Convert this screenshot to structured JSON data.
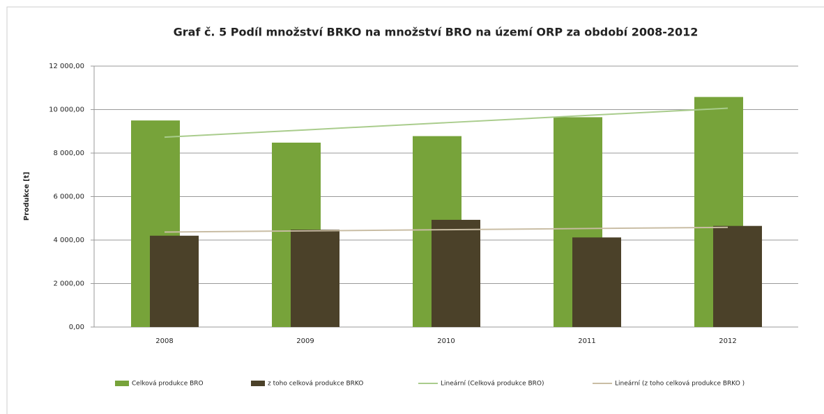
{
  "chart_data": {
    "type": "bar",
    "title": "Graf č. 5 Podíl množství BRKO na množství BRO na území ORP za období 2008-2012",
    "y_label": "Produkce [t]",
    "categories": [
      "2008",
      "2009",
      "2010",
      "2011",
      "2012"
    ],
    "series": [
      {
        "name": "Celková produkce BRO",
        "type": "bar",
        "color": "#77a33a",
        "values": [
          9500,
          8480,
          8780,
          9650,
          10580
        ]
      },
      {
        "name": "z toho celková produkce BRKO",
        "type": "bar",
        "color": "#4b4129",
        "values": [
          4200,
          4480,
          4930,
          4120,
          4650
        ]
      },
      {
        "name": "Lineární (Celková produkce BRO)",
        "type": "line",
        "color": "#a9cc8c",
        "values": [
          8732,
          9065,
          9398,
          9731,
          10064
        ]
      },
      {
        "name": "Lineární (z toho celková produkce BRKO )",
        "type": "line",
        "color": "#c9bda4",
        "values": [
          4368,
          4422,
          4476,
          4530,
          4584
        ]
      }
    ],
    "ylim": [
      0,
      12000
    ],
    "yticks": [
      {
        "value": 0,
        "label": "0,00"
      },
      {
        "value": 2000,
        "label": "2 000,00"
      },
      {
        "value": 4000,
        "label": "4 000,00"
      },
      {
        "value": 6000,
        "label": "6 000,00"
      },
      {
        "value": 8000,
        "label": "8 000,00"
      },
      {
        "value": 10000,
        "label": "10 000,00"
      },
      {
        "value": 12000,
        "label": "12 000,00"
      }
    ],
    "grid": true,
    "legend": "bottom"
  }
}
